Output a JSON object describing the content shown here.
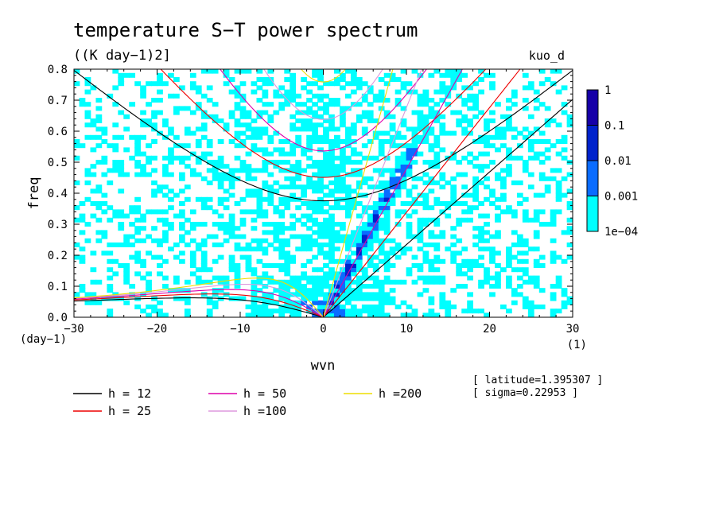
{
  "chart_data": {
    "type": "heatmap",
    "title": "temperature S−T power spectrum",
    "subtitle": "((K day−1)2]",
    "case_label": "kuo_d",
    "xlabel": "wvn",
    "ylabel": "freq",
    "x_unit": "(1)",
    "y_unit": "(day−1)",
    "xlim": [
      -30,
      30
    ],
    "ylim": [
      0,
      0.8
    ],
    "x_ticks": [
      -30,
      -20,
      -10,
      0,
      10,
      20,
      30
    ],
    "x_tick_labels": [
      "−30",
      "−20",
      "−10",
      "0",
      "10",
      "20",
      "30"
    ],
    "y_ticks": [
      0,
      0.1,
      0.2,
      0.3,
      0.4,
      0.5,
      0.6,
      0.7,
      0.8
    ],
    "y_tick_labels": [
      "0.0",
      "0.1",
      "0.2",
      "0.3",
      "0.4",
      "0.5",
      "0.6",
      "0.7",
      "0.8"
    ],
    "colorbar": {
      "levels": [
        0.0001,
        0.001,
        0.01,
        0.1,
        1
      ],
      "labels": [
        "1e−04",
        "0.001",
        "0.01",
        "0.1",
        "1"
      ],
      "colors": [
        "#00ffff",
        "#0a6cff",
        "#0022cc",
        "#1600a8",
        "#4a00b0"
      ]
    },
    "annotations": [
      "[ latitude=1.395307 ]",
      "[ sigma=0.22953 ]"
    ],
    "dispersion_curves": [
      {
        "label": "h = 12",
        "h": 12,
        "color": "#000000"
      },
      {
        "label": "h = 25",
        "h": 25,
        "color": "#ee0000"
      },
      {
        "label": "h = 50",
        "h": 50,
        "color": "#dd00aa"
      },
      {
        "label": "h =100",
        "h": 100,
        "color": "#dd99dd"
      },
      {
        "label": "h =200",
        "h": 200,
        "color": "#eedd00"
      }
    ]
  }
}
